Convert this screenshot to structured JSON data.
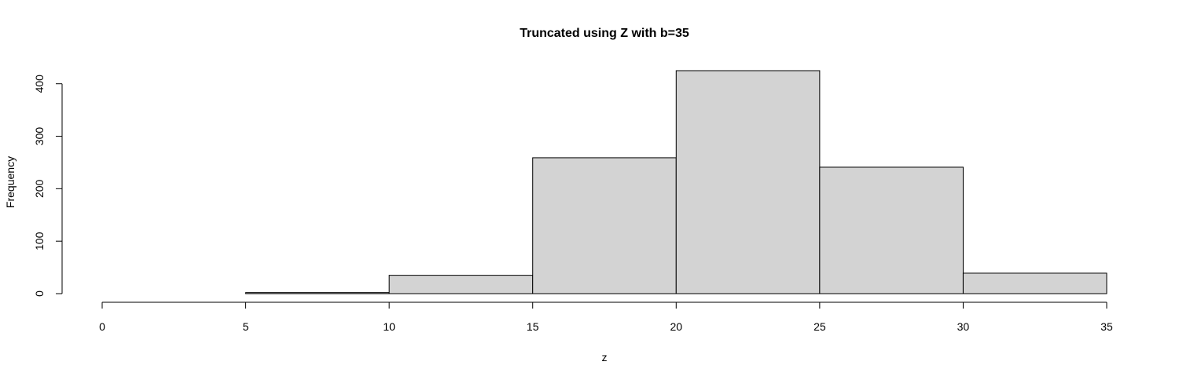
{
  "chart_data": {
    "type": "bar",
    "title": "Truncated using Z with b=35",
    "xlabel": "z",
    "ylabel": "Frequency",
    "xlim": [
      0,
      35
    ],
    "ylim": [
      0,
      425
    ],
    "x_ticks": [
      0,
      5,
      10,
      15,
      20,
      25,
      30,
      35
    ],
    "y_ticks": [
      0,
      100,
      200,
      300,
      400
    ],
    "bin_edges": [
      0,
      5,
      10,
      15,
      20,
      25,
      30,
      35
    ],
    "values": [
      0,
      2,
      35,
      259,
      425,
      241,
      39
    ],
    "bar_fill": "#d3d3d3",
    "grid": false
  }
}
